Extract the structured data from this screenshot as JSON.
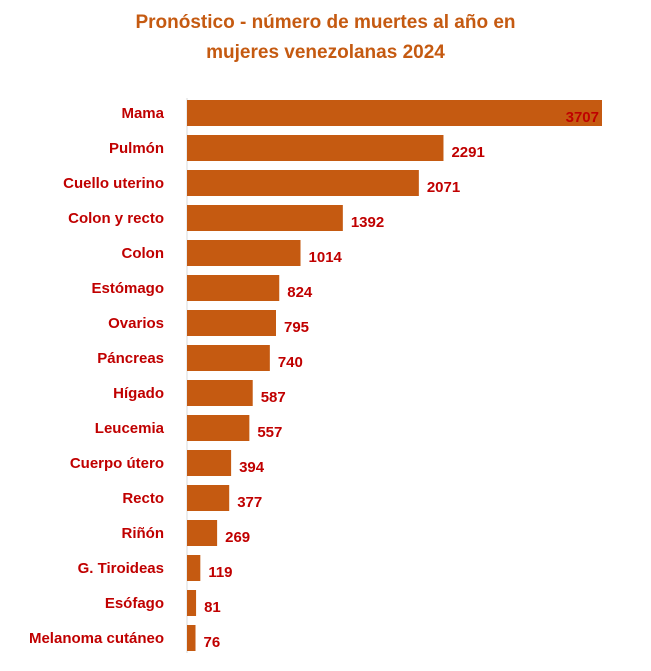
{
  "chart_data": {
    "type": "bar",
    "orientation": "horizontal",
    "title_lines": [
      "Pronóstico - número de muertes al año en",
      "mujeres venezolanas 2024"
    ],
    "categories": [
      "Mama",
      "Pulmón",
      "Cuello uterino",
      "Colon y recto",
      "Colon",
      "Estómago",
      "Ovarios",
      "Páncreas",
      "Hígado",
      "Leucemia",
      "Cuerpo útero",
      "Recto",
      "Riñón",
      "G. Tiroideas",
      "Esófago",
      "Melanoma cutáneo"
    ],
    "values": [
      3707,
      2291,
      2071,
      1392,
      1014,
      824,
      795,
      740,
      587,
      557,
      394,
      377,
      269,
      119,
      81,
      76
    ],
    "xlim": [
      0,
      3707
    ],
    "grid": false,
    "legend": "none",
    "colors": {
      "bar": "#C55A11",
      "title": "#C55A11",
      "labels": "#C00000"
    }
  }
}
